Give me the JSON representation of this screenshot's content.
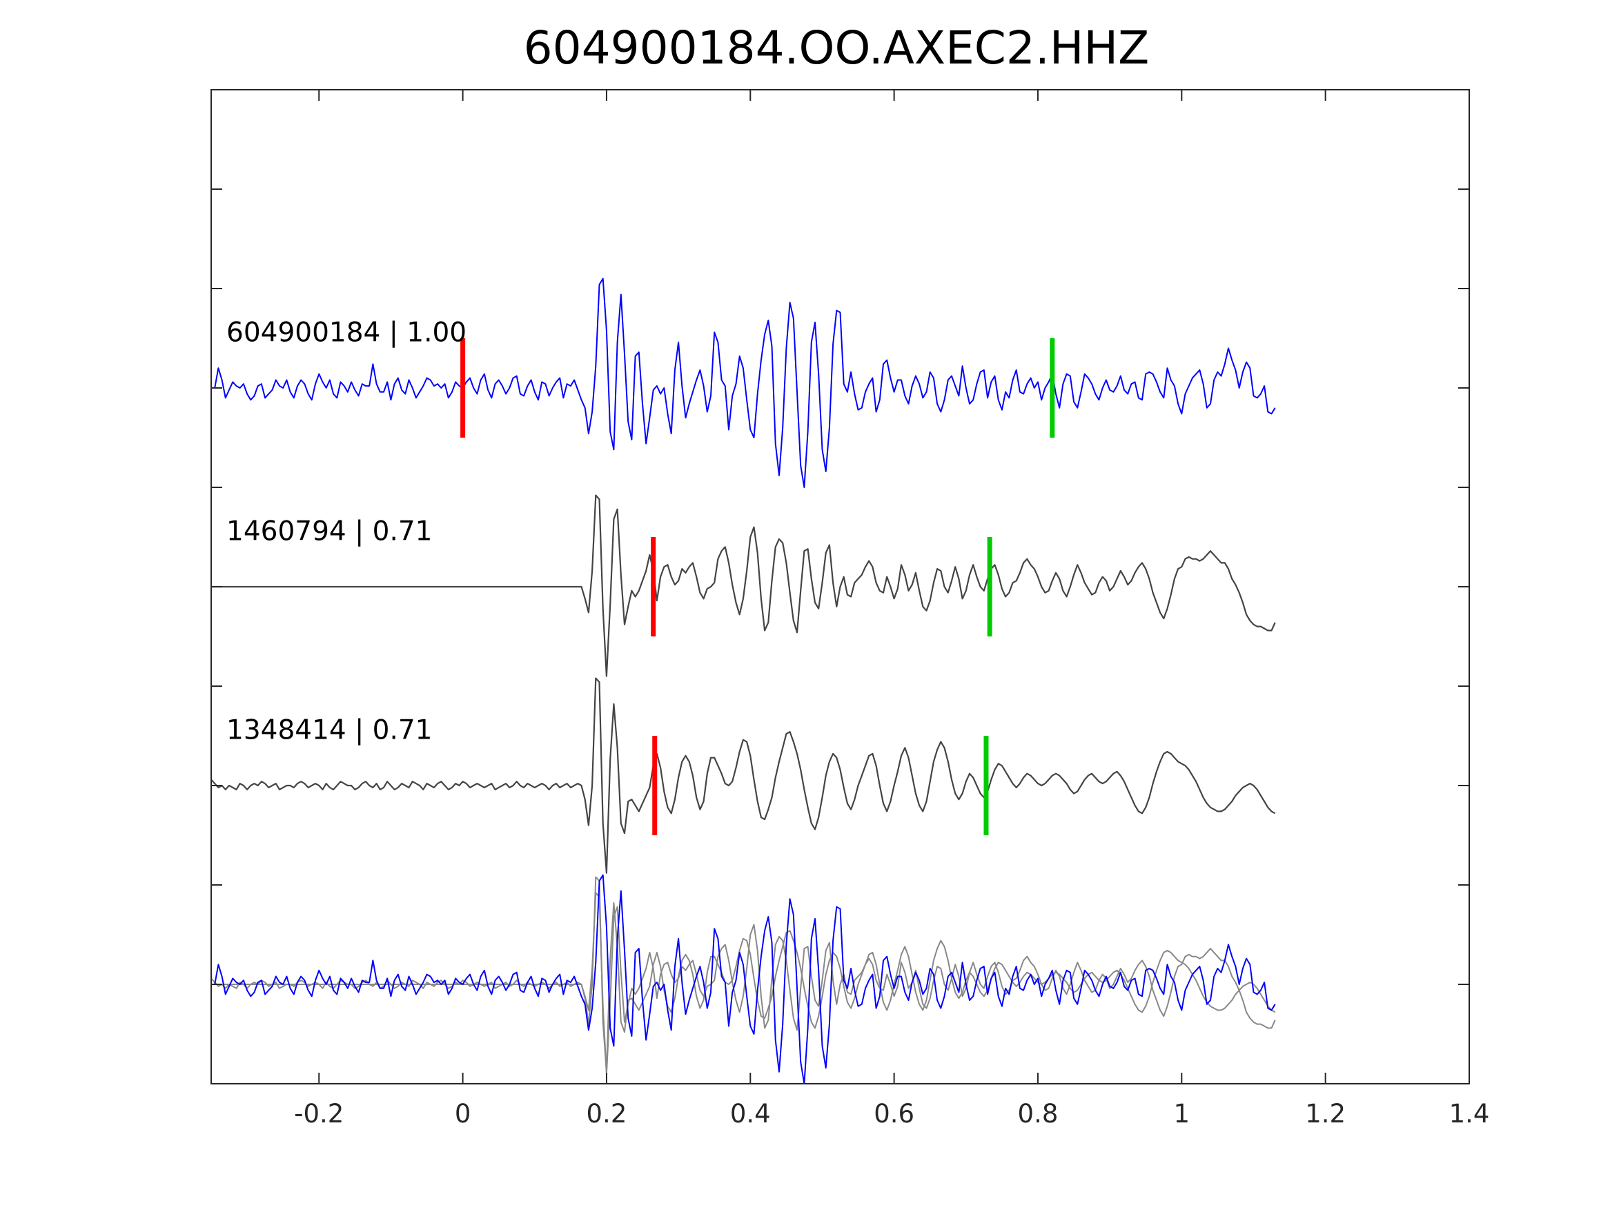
{
  "chart_data": {
    "type": "line",
    "title": "604900184.OO.AXEC2.HHZ",
    "xlabel": "",
    "ylabel": "",
    "xlim": [
      -0.35,
      1.4
    ],
    "xticks": [
      -0.2,
      0,
      0.2,
      0.4,
      0.6,
      0.8,
      1,
      1.2,
      1.4
    ],
    "xtick_labels": [
      "-0.2",
      "0",
      "0.2",
      "0.4",
      "0.6",
      "0.8",
      "1",
      "1.2",
      "1.4"
    ],
    "ylim": [
      -4.5,
      0.5
    ],
    "yticks": [
      0,
      -0.5,
      -1,
      -1.5,
      -2,
      -2.5,
      -3,
      -3.5,
      -4
    ],
    "ytick_labels": [],
    "grid": false,
    "sample_interval": 0.005,
    "colors": {
      "main": "#0000ff",
      "neighbor": "#444444",
      "overlay_neighbor": "#888888",
      "p_pick": "#ff0000",
      "s_pick": "#00cc00"
    },
    "traces": [
      {
        "label": "604900184 | 1.00",
        "offset": -1,
        "color": "#0000ff",
        "p_pick": 0.0,
        "s_pick": 0.82,
        "values": [
          0.0,
          0.0,
          0.1,
          0.04,
          -0.05,
          -0.01,
          0.03,
          0.01,
          0.0,
          0.02,
          -0.03,
          -0.06,
          -0.04,
          0.01,
          0.02,
          -0.05,
          -0.03,
          -0.01,
          0.04,
          0.01,
          0.0,
          0.04,
          -0.02,
          -0.05,
          0.01,
          0.04,
          0.02,
          -0.03,
          -0.06,
          0.02,
          0.07,
          0.03,
          0.0,
          0.04,
          -0.03,
          -0.05,
          0.03,
          0.01,
          -0.02,
          0.03,
          -0.01,
          -0.04,
          0.02,
          0.01,
          0.01,
          0.12,
          0.02,
          -0.02,
          -0.02,
          0.03,
          -0.06,
          0.02,
          0.05,
          -0.01,
          -0.03,
          0.04,
          0.0,
          -0.05,
          -0.02,
          0.01,
          0.05,
          0.04,
          0.01,
          0.02,
          0.0,
          0.02,
          -0.05,
          -0.02,
          0.03,
          0.01,
          0.0,
          0.03,
          0.05,
          0.0,
          -0.03,
          0.04,
          0.07,
          -0.01,
          -0.05,
          0.02,
          0.04,
          0.01,
          -0.03,
          0.0,
          0.05,
          0.06,
          -0.03,
          -0.04,
          0.01,
          0.04,
          -0.02,
          -0.06,
          0.03,
          0.02,
          -0.04,
          0.0,
          0.03,
          0.05,
          -0.05,
          0.02,
          0.01,
          0.04,
          -0.01,
          -0.06,
          -0.1,
          -0.23,
          -0.12,
          0.11,
          0.52,
          0.55,
          0.29,
          -0.22,
          -0.31,
          0.23,
          0.47,
          0.17,
          -0.17,
          -0.26,
          0.16,
          0.18,
          -0.08,
          -0.28,
          -0.15,
          -0.01,
          0.01,
          -0.03,
          0.0,
          -0.13,
          -0.23,
          0.09,
          0.23,
          0.01,
          -0.15,
          -0.08,
          -0.02,
          0.04,
          0.09,
          0.01,
          -0.12,
          -0.04,
          0.28,
          0.23,
          0.04,
          0.01,
          -0.21,
          -0.04,
          0.02,
          0.16,
          0.1,
          -0.06,
          -0.21,
          -0.25,
          -0.03,
          0.14,
          0.27,
          0.34,
          0.21,
          -0.28,
          -0.44,
          -0.2,
          0.2,
          0.43,
          0.35,
          -0.02,
          -0.39,
          -0.5,
          -0.22,
          0.23,
          0.33,
          0.07,
          -0.31,
          -0.42,
          -0.2,
          0.22,
          0.39,
          0.38,
          0.02,
          -0.02,
          0.08,
          -0.03,
          -0.11,
          -0.1,
          -0.02,
          0.02,
          0.05,
          -0.12,
          -0.06,
          0.12,
          0.14,
          0.05,
          -0.02,
          0.04,
          0.04,
          -0.04,
          -0.08,
          0.01,
          0.06,
          0.02,
          -0.05,
          -0.02,
          0.08,
          0.05,
          -0.08,
          -0.12,
          -0.06,
          0.04,
          0.06,
          0.01,
          -0.04,
          0.11,
          0.0,
          -0.08,
          -0.06,
          0.02,
          0.08,
          0.09,
          -0.05,
          0.03,
          0.06,
          -0.06,
          -0.11,
          -0.02,
          -0.05,
          0.04,
          0.09,
          -0.02,
          -0.03,
          0.02,
          0.05,
          0.0,
          0.03,
          -0.06,
          0.0,
          0.03,
          0.07,
          -0.03,
          -0.1,
          0.02,
          0.07,
          0.06,
          -0.07,
          -0.1,
          -0.02,
          0.07,
          0.05,
          0.02,
          -0.03,
          -0.06,
          0.0,
          0.04,
          -0.01,
          -0.02,
          0.01,
          0.06,
          -0.01,
          -0.03,
          0.02,
          0.03,
          -0.05,
          -0.06,
          0.07,
          0.08,
          0.07,
          0.03,
          -0.02,
          -0.05,
          0.1,
          0.04,
          0.01,
          -0.08,
          -0.13,
          -0.03,
          0.01,
          0.05,
          0.07,
          0.09,
          0.02,
          -0.1,
          -0.08,
          0.04,
          0.08,
          0.06,
          0.12,
          0.2,
          0.14,
          0.09,
          0.0,
          0.08,
          0.13,
          0.1,
          -0.04,
          -0.05,
          -0.03,
          0.01,
          -0.12,
          -0.13,
          -0.1
        ]
      },
      {
        "label": "1460794 | 0.71",
        "offset": -2,
        "color": "#444444",
        "p_pick": 0.265,
        "s_pick": 0.733,
        "values": [
          0.0,
          0.0,
          0.0,
          0.0,
          0.0,
          0.0,
          0.0,
          0.0,
          0.0,
          0.0,
          0.0,
          0.0,
          0.0,
          0.0,
          0.0,
          0.0,
          0.0,
          0.0,
          0.0,
          0.0,
          0.0,
          0.0,
          0.0,
          0.0,
          0.0,
          0.0,
          0.0,
          0.0,
          0.0,
          0.0,
          0.0,
          0.0,
          0.0,
          0.0,
          0.0,
          0.0,
          0.0,
          0.0,
          0.0,
          0.0,
          0.0,
          0.0,
          0.0,
          0.0,
          0.0,
          0.0,
          0.0,
          0.0,
          0.0,
          0.0,
          0.0,
          0.0,
          0.0,
          0.0,
          0.0,
          0.0,
          0.0,
          0.0,
          0.0,
          0.0,
          0.0,
          0.0,
          0.0,
          0.0,
          0.0,
          0.0,
          0.0,
          0.0,
          0.0,
          0.0,
          0.0,
          0.0,
          0.0,
          0.0,
          0.0,
          0.0,
          0.0,
          0.0,
          0.0,
          0.0,
          0.0,
          0.0,
          0.0,
          0.0,
          0.0,
          0.0,
          0.0,
          0.0,
          0.0,
          0.0,
          0.0,
          0.0,
          0.0,
          0.0,
          0.0,
          0.0,
          0.0,
          0.0,
          0.0,
          0.0,
          0.0,
          0.0,
          0.0,
          0.0,
          -0.06,
          -0.13,
          0.08,
          0.46,
          0.44,
          -0.11,
          -0.45,
          -0.09,
          0.34,
          0.39,
          0.06,
          -0.19,
          -0.1,
          -0.02,
          -0.05,
          -0.02,
          0.03,
          0.08,
          0.16,
          0.08,
          -0.07,
          0.05,
          0.1,
          0.11,
          0.05,
          0.01,
          0.03,
          0.09,
          0.07,
          0.1,
          0.12,
          0.05,
          -0.03,
          -0.06,
          -0.01,
          0.0,
          0.02,
          0.14,
          0.18,
          0.2,
          0.12,
          0.01,
          -0.08,
          -0.14,
          -0.06,
          0.08,
          0.25,
          0.3,
          0.17,
          -0.06,
          -0.22,
          -0.18,
          0.03,
          0.2,
          0.24,
          0.22,
          0.12,
          -0.03,
          -0.17,
          -0.23,
          -0.02,
          0.18,
          0.19,
          0.04,
          -0.08,
          -0.11,
          0.02,
          0.17,
          0.21,
          0.02,
          -0.1,
          0.0,
          0.05,
          -0.04,
          -0.05,
          0.02,
          0.04,
          0.06,
          0.1,
          0.13,
          0.1,
          0.02,
          -0.02,
          -0.03,
          0.05,
          0.0,
          -0.06,
          -0.01,
          0.11,
          0.06,
          -0.02,
          0.01,
          0.07,
          -0.02,
          -0.1,
          -0.12,
          -0.07,
          0.02,
          0.09,
          0.08,
          0.0,
          -0.03,
          0.03,
          0.1,
          0.04,
          -0.06,
          -0.02,
          0.06,
          0.11,
          0.05,
          0.0,
          -0.02,
          0.04,
          0.09,
          0.11,
          0.06,
          -0.01,
          -0.05,
          -0.03,
          0.02,
          0.03,
          0.07,
          0.12,
          0.14,
          0.11,
          0.09,
          0.05,
          0.0,
          -0.03,
          -0.02,
          0.03,
          0.07,
          0.04,
          -0.02,
          -0.05,
          0.0,
          0.06,
          0.11,
          0.07,
          0.02,
          -0.01,
          -0.04,
          -0.03,
          0.02,
          0.05,
          0.03,
          -0.02,
          0.0,
          0.04,
          0.08,
          0.05,
          0.01,
          0.03,
          0.07,
          0.1,
          0.12,
          0.09,
          0.04,
          -0.03,
          -0.08,
          -0.13,
          -0.16,
          -0.11,
          -0.04,
          0.04,
          0.09,
          0.1,
          0.14,
          0.15,
          0.14,
          0.14,
          0.13,
          0.14,
          0.16,
          0.18,
          0.16,
          0.14,
          0.12,
          0.12,
          0.09,
          0.04,
          0.01,
          -0.03,
          -0.08,
          -0.14,
          -0.17,
          -0.19,
          -0.2,
          -0.2,
          -0.21,
          -0.22,
          -0.22,
          -0.18
        ]
      },
      {
        "label": "1348414 | 0.71",
        "offset": -3,
        "color": "#444444",
        "p_pick": 0.267,
        "s_pick": 0.728,
        "values": [
          0.03,
          0.01,
          -0.01,
          0.0,
          -0.02,
          0.0,
          -0.01,
          -0.02,
          0.01,
          0.0,
          -0.02,
          0.0,
          0.01,
          0.0,
          0.02,
          0.01,
          -0.01,
          0.0,
          0.01,
          -0.02,
          -0.01,
          0.0,
          0.0,
          -0.01,
          0.01,
          0.02,
          0.01,
          -0.01,
          0.0,
          0.01,
          0.0,
          -0.02,
          0.01,
          -0.01,
          -0.02,
          0.0,
          0.02,
          0.01,
          0.0,
          0.0,
          -0.02,
          -0.01,
          0.01,
          0.02,
          0.0,
          -0.01,
          0.01,
          -0.02,
          -0.01,
          0.02,
          0.0,
          -0.02,
          -0.01,
          0.01,
          0.0,
          -0.01,
          0.02,
          0.01,
          0.0,
          -0.02,
          0.01,
          0.0,
          -0.01,
          0.01,
          0.02,
          0.0,
          -0.02,
          -0.01,
          0.01,
          0.0,
          0.02,
          0.01,
          -0.01,
          0.0,
          0.01,
          0.0,
          -0.01,
          0.0,
          0.01,
          -0.02,
          -0.01,
          0.0,
          0.01,
          -0.01,
          0.0,
          0.02,
          0.0,
          -0.01,
          0.01,
          0.0,
          -0.01,
          0.0,
          0.01,
          0.0,
          -0.02,
          0.0,
          0.01,
          -0.01,
          0.0,
          0.01,
          -0.01,
          0.0,
          0.01,
          0.0,
          -0.07,
          -0.2,
          0.0,
          0.54,
          0.52,
          -0.19,
          -0.44,
          0.13,
          0.41,
          0.19,
          -0.19,
          -0.24,
          -0.08,
          -0.07,
          -0.1,
          -0.13,
          -0.09,
          -0.05,
          -0.01,
          0.1,
          0.16,
          0.09,
          -0.03,
          -0.11,
          -0.14,
          -0.07,
          0.04,
          0.12,
          0.15,
          0.12,
          0.05,
          -0.06,
          -0.12,
          -0.08,
          0.06,
          0.14,
          0.14,
          0.1,
          0.06,
          0.01,
          0.0,
          0.02,
          0.09,
          0.17,
          0.23,
          0.22,
          0.15,
          0.03,
          -0.08,
          -0.16,
          -0.17,
          -0.12,
          -0.06,
          0.04,
          0.12,
          0.19,
          0.26,
          0.27,
          0.22,
          0.16,
          0.08,
          -0.02,
          -0.11,
          -0.19,
          -0.22,
          -0.16,
          -0.06,
          0.05,
          0.12,
          0.16,
          0.14,
          0.08,
          -0.01,
          -0.09,
          -0.12,
          -0.07,
          0.0,
          0.05,
          0.1,
          0.15,
          0.16,
          0.1,
          0.0,
          -0.09,
          -0.13,
          -0.08,
          0.0,
          0.07,
          0.15,
          0.19,
          0.14,
          0.05,
          -0.04,
          -0.1,
          -0.13,
          -0.08,
          0.02,
          0.12,
          0.18,
          0.22,
          0.19,
          0.12,
          0.03,
          -0.04,
          -0.07,
          -0.04,
          0.02,
          0.06,
          0.04,
          0.0,
          -0.04,
          -0.06,
          -0.03,
          0.03,
          0.08,
          0.11,
          0.1,
          0.07,
          0.04,
          0.01,
          -0.01,
          0.01,
          0.04,
          0.06,
          0.05,
          0.03,
          0.01,
          0.0,
          0.01,
          0.03,
          0.05,
          0.06,
          0.05,
          0.03,
          0.01,
          -0.02,
          -0.04,
          -0.03,
          0.0,
          0.03,
          0.05,
          0.06,
          0.04,
          0.02,
          0.01,
          0.02,
          0.04,
          0.06,
          0.07,
          0.05,
          0.02,
          -0.02,
          -0.06,
          -0.1,
          -0.13,
          -0.14,
          -0.11,
          -0.06,
          0.01,
          0.07,
          0.12,
          0.16,
          0.17,
          0.16,
          0.14,
          0.12,
          0.11,
          0.1,
          0.08,
          0.05,
          0.02,
          -0.02,
          -0.06,
          -0.09,
          -0.11,
          -0.12,
          -0.13,
          -0.13,
          -0.12,
          -0.1,
          -0.08,
          -0.05,
          -0.03,
          -0.01,
          0.0,
          0.01,
          0.0,
          -0.02,
          -0.05,
          -0.08,
          -0.11,
          -0.13,
          -0.14
        ]
      }
    ],
    "overlay": {
      "offset": -4,
      "sources": [
        "604900184 | 1.00",
        "1460794 | 0.71",
        "1348414 | 0.71"
      ]
    }
  }
}
